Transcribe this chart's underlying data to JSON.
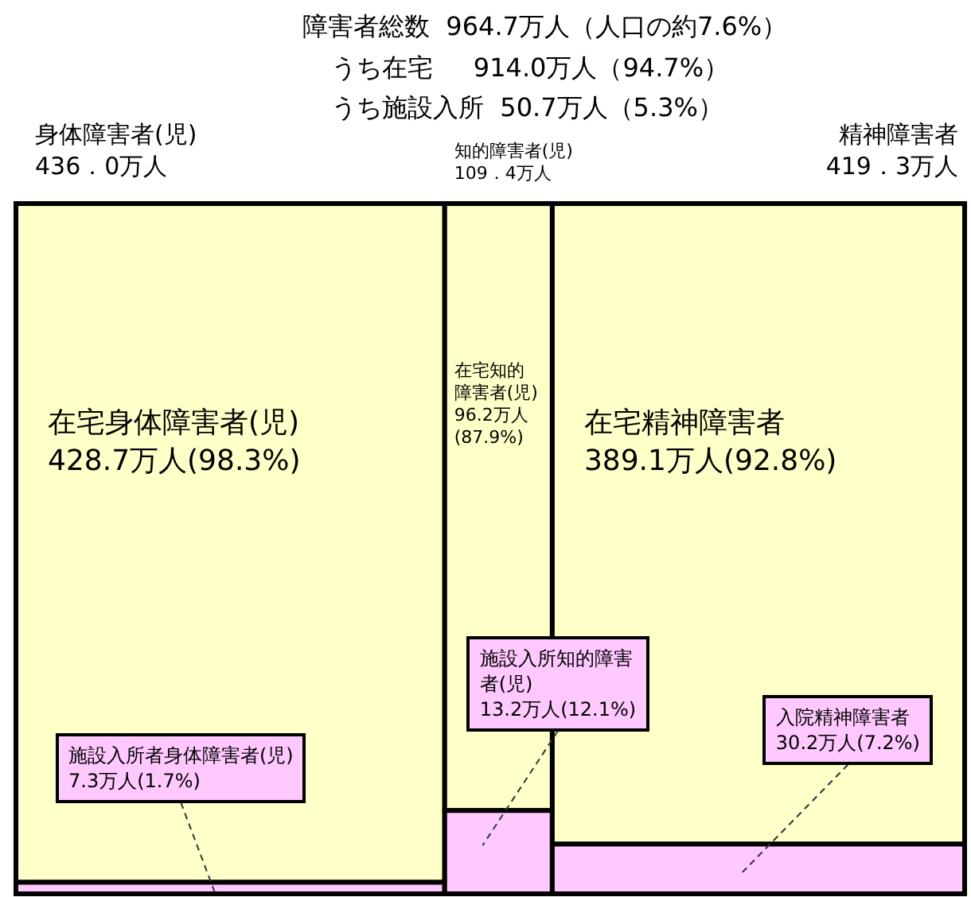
{
  "chart_data": {
    "type": "other",
    "title": "障害者総数  964.7万人（人口の約7.6%）",
    "annotations": [
      "うち在宅     914.0万人（94.7%）",
      "うち施設入所  50.7万人（5.3%）"
    ],
    "categories": [
      "身体障害者(児)",
      "知的障害者(児)",
      "精神障害者"
    ],
    "totals": [
      "436．0万人",
      "109．4万人",
      "419．3万人"
    ],
    "series": [
      {
        "color": "#ffffc8",
        "values": [
          428.7,
          96.2,
          389.1
        ],
        "value_labels": [
          "在宅身体障害者(児)\n428.7万人(98.3%)",
          "在宅知的障害者(児)\n96.2万人\n(87.9%)",
          "在宅精神障害者\n389.1万人(92.8%)"
        ]
      },
      {
        "color": "#ffc8ff",
        "values": [
          7.3,
          13.2,
          30.2
        ],
        "value_labels": [
          "施設入所者身体障害者(児)\n7.3万人(1.7%)",
          "施設入所知的障害者(児)\n13.2万人(12.1%)",
          "入院精神障害者\n30.2万人(7.2%)"
        ]
      }
    ]
  }
}
